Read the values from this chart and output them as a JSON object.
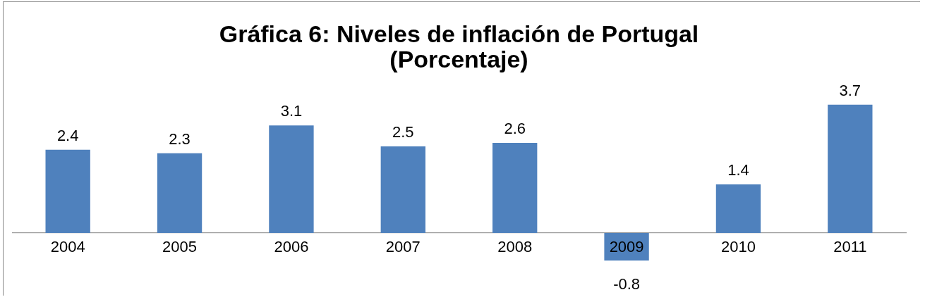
{
  "chart_data": {
    "type": "bar",
    "title": [
      "Gráfica 6: Niveles de inflación de Portugal",
      "(Porcentaje)"
    ],
    "categories": [
      "2004",
      "2005",
      "2006",
      "2007",
      "2008",
      "2009",
      "2010",
      "2011"
    ],
    "values": [
      2.4,
      2.3,
      3.1,
      2.5,
      2.6,
      -0.8,
      1.4,
      3.7
    ],
    "color": "#4f81bd",
    "data_labels": true,
    "legend": false,
    "tick_labels": "x"
  }
}
